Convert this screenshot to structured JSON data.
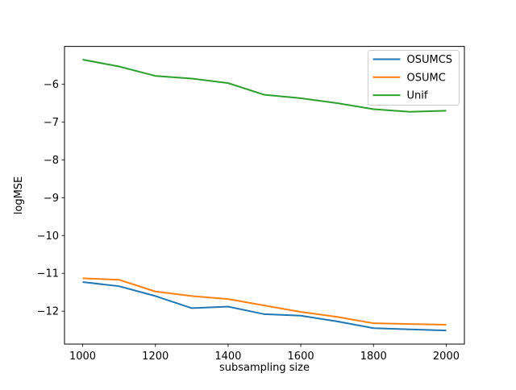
{
  "figure": {
    "background": "#ffffff",
    "axes_edge_color": "#000000"
  },
  "chart_data": {
    "type": "line",
    "title": "",
    "xlabel": "subsampling size",
    "ylabel": "logMSE",
    "x": [
      1000,
      1100,
      1200,
      1300,
      1400,
      1500,
      1600,
      1700,
      1800,
      1900,
      2000
    ],
    "series": [
      {
        "name": "OSUMCS",
        "color": "#1f77b4",
        "values": [
          -11.23,
          -11.34,
          -11.6,
          -11.92,
          -11.88,
          -12.08,
          -12.12,
          -12.27,
          -12.45,
          -12.48,
          -12.51
        ]
      },
      {
        "name": "OSUMC",
        "color": "#ff7f0e",
        "values": [
          -11.13,
          -11.17,
          -11.48,
          -11.6,
          -11.68,
          -11.85,
          -12.02,
          -12.15,
          -12.32,
          -12.34,
          -12.36
        ]
      },
      {
        "name": "Unif",
        "color": "#2ca02c",
        "values": [
          -5.35,
          -5.53,
          -5.78,
          -5.85,
          -5.97,
          -6.28,
          -6.37,
          -6.5,
          -6.66,
          -6.73,
          -6.7
        ]
      }
    ],
    "xlim": [
      950,
      2050
    ],
    "ylim": [
      -12.87,
      -5.0
    ],
    "xticks": [
      1000,
      1200,
      1400,
      1600,
      1800,
      2000
    ],
    "xtick_labels": [
      "1000",
      "1200",
      "1400",
      "1600",
      "1800",
      "2000"
    ],
    "yticks": [
      -6,
      -7,
      -8,
      -9,
      -10,
      -11,
      -12
    ],
    "ytick_labels": [
      "−6",
      "−7",
      "−8",
      "−9",
      "−10",
      "−11",
      "−12"
    ],
    "grid": false,
    "legend": {
      "position": "upper right",
      "entries": [
        "OSUMCS",
        "OSUMC",
        "Unif"
      ]
    }
  }
}
